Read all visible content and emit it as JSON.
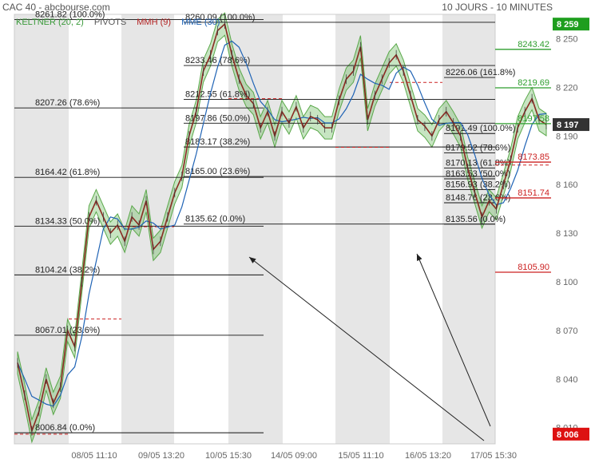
{
  "header": {
    "title": "CAC 40 - abcbourse.com",
    "period": "10 JOURS - 10 MINUTES"
  },
  "legend": [
    {
      "label": "KELTNER (20, 2)",
      "color": "#3a9a3a"
    },
    {
      "label": "PIVOTS",
      "color": "#555555"
    },
    {
      "label": "MMH (9)",
      "color": "#b22222"
    },
    {
      "label": "MME (30)",
      "color": "#1f63b5"
    }
  ],
  "chart_data": {
    "type": "line",
    "title": "CAC 40",
    "y_axis": {
      "ticks": [
        8010,
        8040,
        8070,
        8100,
        8130,
        8160,
        8190,
        8220,
        8250
      ],
      "range": [
        8000,
        8265
      ]
    },
    "x_axis": {
      "ticks": [
        "08/05 11:10",
        "09/05 13:20",
        "10/05 15:30",
        "14/05 09:00",
        "15/05 11:10",
        "16/05 13:20",
        "17/05 15:30"
      ]
    },
    "price_badges": [
      {
        "value": "8 259",
        "color": "#1e9e1e"
      },
      {
        "value": "8 197",
        "color": "#333333"
      },
      {
        "value": "8 006",
        "color": "#dd1111"
      }
    ],
    "resistance_levels": [
      {
        "value": 8243.42,
        "label": "8243.42",
        "color": "#2e9e2e"
      },
      {
        "value": 8219.69,
        "label": "8219.69",
        "color": "#2e9e2e"
      },
      {
        "value": 8197.58,
        "label": "8197.58",
        "color": "#2e9e2e"
      }
    ],
    "support_levels": [
      {
        "value": 8173.85,
        "label": "8173.85",
        "color": "#cc2222"
      },
      {
        "value": 8151.74,
        "label": "8151.74",
        "color": "#cc2222"
      },
      {
        "value": 8105.9,
        "label": "8105.90",
        "color": "#cc2222"
      }
    ],
    "fibonacci_sets": [
      {
        "levels": [
          {
            "value": 8261.82,
            "label": "8261.82  (100.0%)"
          },
          {
            "value": 8207.26,
            "label": "8207.26  (78.6%)"
          },
          {
            "value": 8164.42,
            "label": "8164.42  (61.8%)"
          },
          {
            "value": 8134.33,
            "label": "8134.33  (50.0%)"
          },
          {
            "value": 8104.24,
            "label": "8104.24  (38.2%)"
          },
          {
            "value": 8067.01,
            "label": "8067.01  (23.6%)"
          },
          {
            "value": 8006.84,
            "label": "8006.84  (0.0%)"
          }
        ]
      },
      {
        "levels": [
          {
            "value": 8260.09,
            "label": "8260.09  (100.0%)"
          },
          {
            "value": 8233.46,
            "label": "8233.46  (78.6%)"
          },
          {
            "value": 8212.55,
            "label": "8212.55  (61.8%)"
          },
          {
            "value": 8197.86,
            "label": "8197.86  (50.0%)"
          },
          {
            "value": 8183.17,
            "label": "8183.17  (38.2%)"
          },
          {
            "value": 8165.0,
            "label": "8165.00  (23.6%)"
          },
          {
            "value": 8135.62,
            "label": "8135.62  (0.0%)"
          }
        ]
      },
      {
        "levels": [
          {
            "value": 8226.06,
            "label": "8226.06  (161.8%)"
          },
          {
            "value": 8191.49,
            "label": "8191.49  (100.0%)"
          },
          {
            "value": 8179.52,
            "label": "8179.52  (78.6%)"
          },
          {
            "value": 8170.13,
            "label": "8170.13  (61.8%)"
          },
          {
            "value": 8163.53,
            "label": "8163.53  (50.0%)"
          },
          {
            "value": 8156.93,
            "label": "8156.93  (38.2%)"
          },
          {
            "value": 8148.76,
            "label": "8148.76  (23.6%)"
          },
          {
            "value": 8135.56,
            "label": "8135.56  (0.0%)"
          }
        ]
      }
    ],
    "pivot_dashes": [
      8006,
      8077,
      8134,
      8213,
      8183,
      8223,
      8172
    ],
    "price_path": [
      8050,
      8030,
      8008,
      8020,
      8040,
      8025,
      8035,
      8070,
      8060,
      8100,
      8140,
      8150,
      8140,
      8130,
      8135,
      8125,
      8140,
      8135,
      8150,
      8120,
      8125,
      8140,
      8155,
      8165,
      8190,
      8205,
      8230,
      8240,
      8255,
      8259,
      8240,
      8225,
      8215,
      8210,
      8195,
      8205,
      8190,
      8205,
      8198,
      8208,
      8195,
      8202,
      8200,
      8195,
      8195,
      8212,
      8225,
      8230,
      8245,
      8200,
      8215,
      8225,
      8235,
      8240,
      8230,
      8215,
      8200,
      8196,
      8190,
      8200,
      8205,
      8198,
      8190,
      8170,
      8155,
      8140,
      8150,
      8145,
      8160,
      8175,
      8195,
      8205,
      8213,
      8200,
      8197
    ],
    "arrows": [
      {
        "from": [
          8005
        ],
        "to": [
          8129
        ],
        "direction": "up-left"
      },
      {
        "from": [
          8015
        ],
        "to": [
          8128
        ],
        "direction": "up"
      }
    ]
  }
}
